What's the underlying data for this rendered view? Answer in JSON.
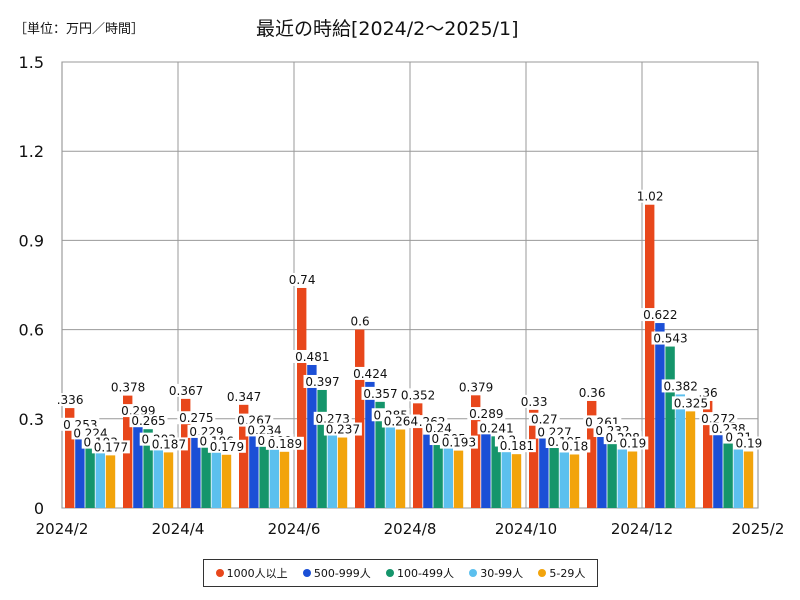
{
  "header": {
    "unit": "［単位：万円／時間］",
    "title": "最近の時給[2024/2～2025/1]"
  },
  "chart_data": {
    "type": "bar",
    "title": "最近の時給[2024/2～2025/1]",
    "unit": "［単位：万円／時間］",
    "xlabel": "",
    "ylabel": "",
    "ylim": [
      0,
      1.5
    ],
    "y_ticks": [
      "0",
      "0.3",
      "0.6",
      "0.9",
      "1.2",
      "1.5"
    ],
    "x_tick_labels": [
      "2024/2",
      "2024/4",
      "2024/6",
      "2024/8",
      "2024/10",
      "2024/12",
      "2025/2"
    ],
    "grid": true,
    "legend_position": "bottom",
    "categories": [
      "2024/2",
      "2024/3",
      "2024/4",
      "2024/5",
      "2024/6",
      "2024/7",
      "2024/8",
      "2024/9",
      "2024/10",
      "2024/11",
      "2024/12",
      "2025/1"
    ],
    "series": [
      {
        "name": "1000人以上",
        "color": "#e8471b",
        "values": [
          0.336,
          0.378,
          0.367,
          0.347,
          0.74,
          0.6,
          0.352,
          0.379,
          0.33,
          0.36,
          1.02,
          0.36
        ],
        "labels": [
          ".336",
          "0.378",
          "0.367",
          "0.347",
          "0.74",
          "0.6",
          "0.352",
          "0.379",
          "0.33",
          "0.36",
          "1.02",
          ".36"
        ]
      },
      {
        "name": "500-999人",
        "color": "#1b4fd6",
        "values": [
          0.253,
          0.299,
          0.275,
          0.267,
          0.481,
          0.424,
          0.262,
          0.289,
          0.27,
          0.261,
          0.622,
          0.272
        ],
        "labels": [
          "0.253",
          "0.299",
          "0.275",
          "0.267",
          "0.481",
          "0.424",
          "0.262",
          "0.289",
          "0.27",
          "0.261",
          "0.622",
          "0.272"
        ]
      },
      {
        "name": "100-499人",
        "color": "#15956b",
        "values": [
          0.224,
          0.265,
          0.229,
          0.234,
          0.397,
          0.357,
          0.24,
          0.241,
          0.227,
          0.232,
          0.543,
          0.238
        ],
        "labels": [
          "0.224",
          "0.265",
          "0.229",
          "0.234",
          "0.397",
          "0.357",
          "0.24",
          "0.241",
          "0.227",
          "0.232",
          "0.543",
          "0.238"
        ]
      },
      {
        "name": "30-99人",
        "color": "#5cc0ee",
        "values": [
          0.193,
          0.203,
          0.196,
          0.199,
          0.273,
          0.285,
          0.205,
          0.2,
          0.195,
          0.208,
          0.382,
          0.21
        ],
        "labels": [
          "0.193",
          "0.203",
          "0.196",
          "0.199",
          "0.273",
          "0.285",
          "0.205",
          "0.2",
          "0.195",
          "0.208",
          "0.382",
          "0.21"
        ]
      },
      {
        "name": "5-29人",
        "color": "#f2a40c",
        "values": [
          0.177,
          0.187,
          0.179,
          0.189,
          0.237,
          0.264,
          0.193,
          0.181,
          0.18,
          0.19,
          0.325,
          0.19
        ],
        "labels": [
          "0.177",
          "0.187",
          "0.179",
          "0.189",
          "0.237",
          "0.264",
          "0.193",
          "0.181",
          "0.18",
          "0.19",
          "0.325",
          "0.19"
        ]
      }
    ]
  }
}
